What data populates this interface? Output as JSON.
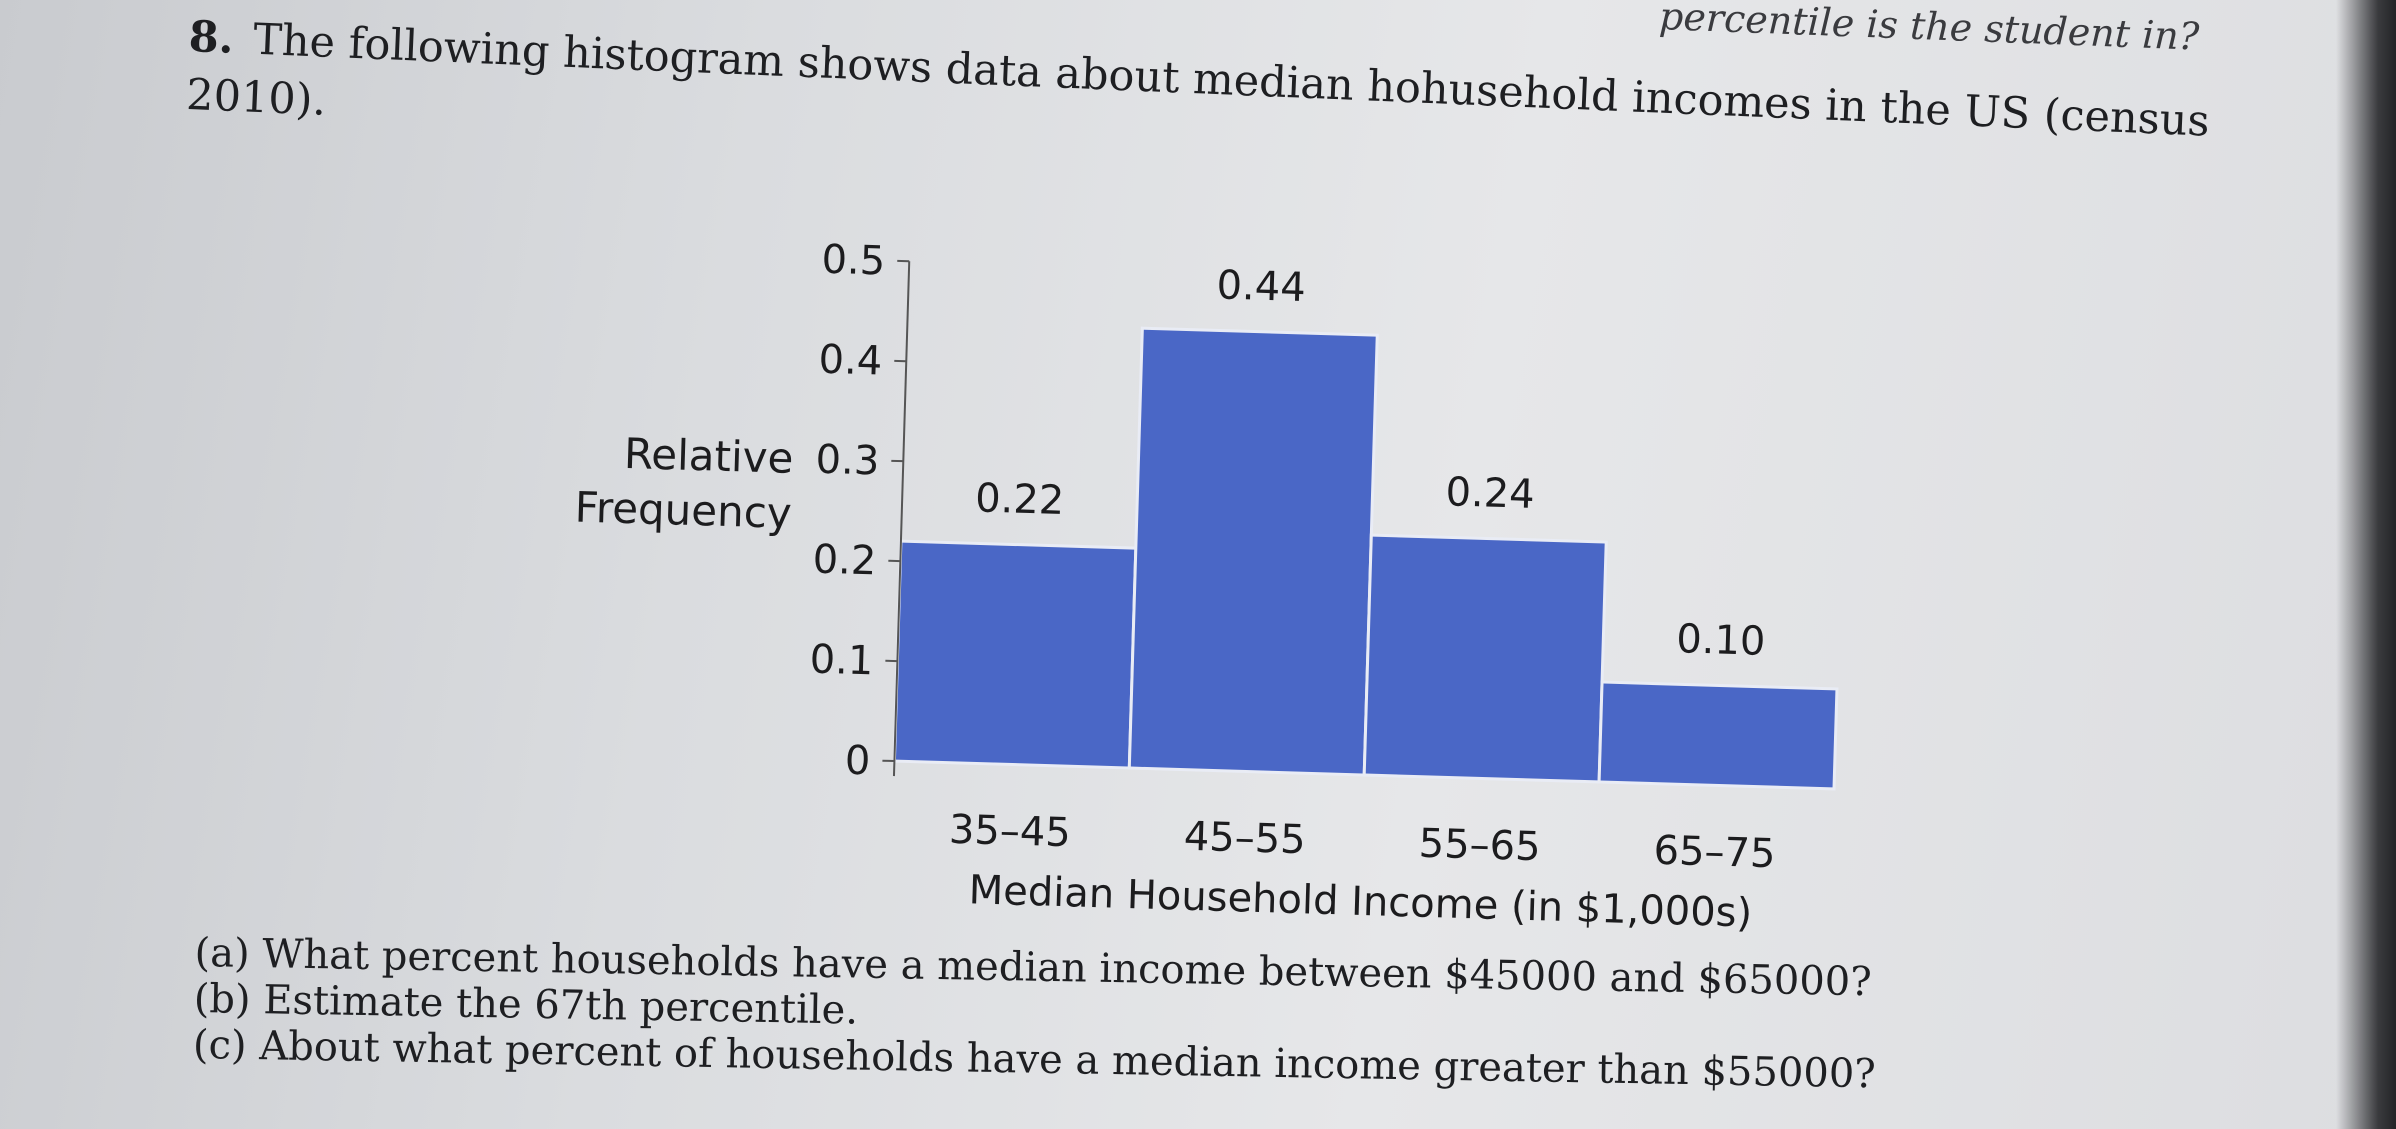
{
  "header": {
    "prev_question_fragment": "percentile is the student in?"
  },
  "problem": {
    "number": "8.",
    "text_line1": "The following histogram shows data about median hohusehold incomes in the US (census",
    "text_line2": "2010)."
  },
  "chart_data": {
    "type": "bar",
    "categories": [
      "35–45",
      "45–55",
      "55–65",
      "65–75"
    ],
    "values": [
      0.22,
      0.44,
      0.24,
      0.1
    ],
    "data_labels": [
      "0.22",
      "0.44",
      "0.24",
      "0.10"
    ],
    "title": "",
    "xlabel": "Median Household Income (in $1,000s)",
    "ylabel": "Relative Frequency",
    "ylabel_lines": [
      "Relative",
      "Frequency"
    ],
    "ylim": [
      0,
      0.5
    ],
    "yticks": [
      "0",
      "0.1",
      "0.2",
      "0.3",
      "0.4",
      "0.5"
    ],
    "bar_color": "#4a67c6",
    "grid": false
  },
  "questions": {
    "a": "(a) What percent households have a median income between $45000 and $65000?",
    "b": "(b) Estimate the 67th percentile.",
    "c": "(c) About what percent of households have a median income greater than $55000?"
  }
}
